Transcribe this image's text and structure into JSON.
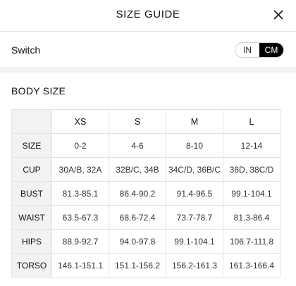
{
  "header": {
    "title": "SIZE GUIDE",
    "close_icon": "close-icon"
  },
  "switch": {
    "label": "Switch",
    "options": [
      "IN",
      "CM"
    ],
    "selected": "CM"
  },
  "body_size": {
    "title": "BODY SIZE",
    "columns": [
      "XS",
      "S",
      "M",
      "L"
    ],
    "rows": [
      {
        "label": "SIZE",
        "values": [
          "0-2",
          "4-6",
          "8-10",
          "12-14"
        ]
      },
      {
        "label": "CUP",
        "values": [
          "30A/B, 32A",
          "32B/C, 34B",
          "34C/D, 36B/C",
          "36D, 38C/D"
        ]
      },
      {
        "label": "BUST",
        "values": [
          "81.3-85.1",
          "86.4-90.2",
          "91.4-96.5",
          "99.1-104.1"
        ]
      },
      {
        "label": "WAIST",
        "values": [
          "63.5-67.3",
          "68.6-72.4",
          "73.7-78.7",
          "81.3-86.4"
        ]
      },
      {
        "label": "HIPS",
        "values": [
          "88.9-92.7",
          "94.0-97.8",
          "99.1-104.1",
          "106.7-111.8"
        ]
      },
      {
        "label": "TORSO",
        "values": [
          "146.1-151.1",
          "151.1-156.2",
          "156.2-161.3",
          "161.3-166.4"
        ]
      }
    ]
  }
}
